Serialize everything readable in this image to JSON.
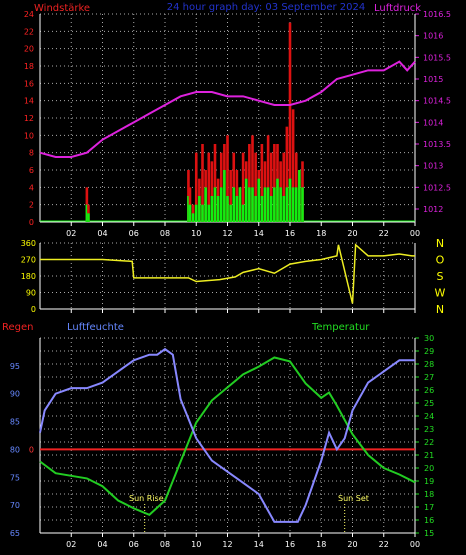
{
  "header": {
    "left_label": "Windstärke",
    "title": "24 hour graph day: 03 September 2024",
    "right_label": "Luftdruck"
  },
  "bottom_header": {
    "rain_label": "Regen",
    "humidity_label": "Luftfeuchte",
    "temp_label": "Temperatur"
  },
  "annotations": {
    "sunrise": "Sun Rise",
    "sunset": "Sun Set"
  },
  "colors": {
    "background": "#000000",
    "axis": "#ffffff",
    "grid": "#aaaaaa",
    "wind_left_axis": "#ff2222",
    "pressure_axis": "#dd22dd",
    "wind_gust": "#dd1111",
    "wind_avg": "#11ee11",
    "pressure_line": "#dd22dd",
    "direction_line": "#eeee22",
    "direction_axis": "#ffff00",
    "humidity_line": "#8888ff",
    "humidity_axis": "#6688ff",
    "temp_line": "#22cc22",
    "temp_axis": "#22dd22",
    "rain_line": "#ee2222",
    "rain_axis": "#ff3333",
    "title": "#2233cc"
  },
  "chart_data": [
    {
      "type": "bar",
      "id": "wind",
      "xlim": [
        0,
        24
      ],
      "x_ticks": [
        "02",
        "04",
        "06",
        "08",
        "10",
        "12",
        "14",
        "16",
        "18",
        "20",
        "22",
        "00"
      ],
      "ylim": [
        0,
        24
      ],
      "y_ticks": [
        0,
        2,
        4,
        6,
        8,
        10,
        12,
        14,
        16,
        18,
        20,
        22,
        24
      ],
      "series": [
        {
          "x": [
            3.0,
            3.1,
            9.5,
            9.6,
            9.8,
            10.0,
            10.2,
            10.4,
            10.6,
            10.8,
            11.0,
            11.2,
            11.4,
            11.6,
            11.8,
            12.0,
            12.2,
            12.4,
            12.6,
            12.8,
            13.0,
            13.2,
            13.4,
            13.6,
            13.8,
            14.0,
            14.2,
            14.4,
            14.6,
            14.8,
            15.0,
            15.2,
            15.4,
            15.6,
            15.8,
            16.0,
            16.2,
            16.4,
            16.6,
            16.8
          ],
          "gust": [
            4,
            2,
            6,
            4,
            2,
            8,
            5,
            9,
            6,
            8,
            7,
            9,
            5,
            8,
            9,
            10,
            6,
            8,
            6,
            4,
            8,
            7,
            9,
            10,
            8,
            6,
            9,
            7,
            10,
            8,
            9,
            9,
            7,
            8,
            11,
            23,
            13,
            8,
            6,
            7
          ],
          "avg": [
            2,
            1,
            3,
            2,
            1,
            2,
            3,
            2,
            4,
            2,
            3,
            4,
            3,
            4,
            6,
            3,
            2,
            4,
            3,
            4,
            2,
            5,
            4,
            4,
            3,
            5,
            3,
            4,
            4,
            3,
            4,
            5,
            4,
            3,
            4,
            5,
            4,
            4,
            6,
            4
          ]
        }
      ]
    },
    {
      "type": "line",
      "id": "pressure",
      "ylim": [
        1011.7,
        1016.5
      ],
      "y_ticks": [
        1012,
        1012.5,
        1013,
        1013.5,
        1014,
        1014.5,
        1015,
        1015.5,
        1016,
        1016.5
      ],
      "x": [
        0,
        1,
        2,
        3,
        4,
        5,
        6,
        7,
        8,
        9,
        10,
        11,
        12,
        13,
        14,
        15,
        16,
        17,
        18,
        19,
        20,
        21,
        22,
        23,
        23.5,
        24
      ],
      "y": [
        1013.3,
        1013.2,
        1013.2,
        1013.3,
        1013.6,
        1013.8,
        1014.0,
        1014.2,
        1014.4,
        1014.6,
        1014.7,
        1014.7,
        1014.6,
        1014.6,
        1014.5,
        1014.4,
        1014.4,
        1014.5,
        1014.7,
        1015.0,
        1015.1,
        1015.2,
        1015.2,
        1015.4,
        1015.2,
        1015.4
      ]
    },
    {
      "type": "line",
      "id": "direction",
      "ylim": [
        0,
        360
      ],
      "y_ticks": [
        0,
        90,
        180,
        270,
        360
      ],
      "compass": [
        "N",
        "W",
        "S",
        "O",
        "N"
      ],
      "x": [
        0,
        4.0,
        5.9,
        6.0,
        9.5,
        10.0,
        11.5,
        12.5,
        13.0,
        14.0,
        15.0,
        16.0,
        17.0,
        18.0,
        19.0,
        19.1,
        20.0,
        20.2,
        21.0,
        22.0,
        23.0,
        23.8,
        24
      ],
      "y": [
        270,
        270,
        260,
        170,
        170,
        150,
        160,
        175,
        200,
        220,
        195,
        245,
        260,
        270,
        290,
        350,
        30,
        350,
        290,
        290,
        300,
        290,
        290
      ]
    },
    {
      "type": "line",
      "id": "humidity",
      "ylim": [
        65,
        100
      ],
      "y_ticks": [
        65,
        70,
        75,
        80,
        85,
        90,
        95
      ],
      "x": [
        0,
        0.3,
        1,
        2,
        3,
        4,
        5,
        6,
        7,
        7.5,
        8,
        8.5,
        9,
        10,
        11,
        12,
        13,
        14,
        15,
        16,
        16.5,
        17,
        17.5,
        18,
        18.5,
        19,
        19.5,
        20,
        21,
        22,
        23,
        24
      ],
      "y": [
        83,
        87,
        90,
        91,
        91,
        92,
        94,
        96,
        97,
        97,
        98,
        97,
        89,
        82,
        78,
        76,
        74,
        72,
        67,
        67,
        67,
        70,
        74,
        78,
        83,
        80,
        82,
        87,
        92,
        94,
        96,
        96
      ]
    },
    {
      "type": "line",
      "id": "temperature",
      "ylim": [
        15,
        30
      ],
      "y_ticks": [
        15,
        16,
        17,
        18,
        19,
        20,
        21,
        22,
        23,
        24,
        25,
        26,
        27,
        28,
        29,
        30
      ],
      "x": [
        0,
        1,
        2,
        3,
        4,
        5,
        6,
        7,
        8,
        9,
        10,
        11,
        12,
        13,
        14,
        15,
        16,
        17,
        18,
        18.5,
        19,
        20,
        21,
        22,
        23,
        24
      ],
      "y": [
        20.5,
        19.6,
        19.4,
        19.2,
        18.6,
        17.5,
        16.9,
        16.4,
        17.5,
        20.5,
        23.5,
        25.2,
        26.2,
        27.2,
        27.8,
        28.5,
        28.2,
        26.5,
        25.4,
        25.8,
        24.8,
        22.6,
        21.0,
        20.0,
        19.5,
        18.9
      ]
    },
    {
      "type": "line",
      "id": "rain",
      "value": 0,
      "y_ticks": [
        0
      ]
    }
  ]
}
